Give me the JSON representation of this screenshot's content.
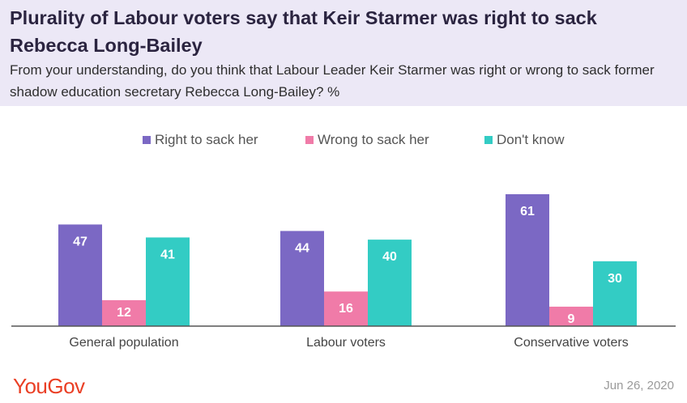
{
  "title": "Plurality of Labour voters say that Keir Starmer was right to sack Rebecca Long-Bailey",
  "subtitle": "From your understanding, do you think that Labour Leader Keir Starmer was right or wrong to sack former shadow education secretary Rebecca Long-Bailey? %",
  "footer": {
    "logo": "YouGov",
    "date": "Jun 26, 2020"
  },
  "colors": {
    "header_bg": "#ece8f6",
    "right": "#7b68c4",
    "wrong": "#f07ba8",
    "dontknow": "#33ccc4"
  },
  "chart_data": {
    "type": "bar",
    "categories": [
      "General population",
      "Labour voters",
      "Conservative voters"
    ],
    "series": [
      {
        "name": "Right to sack her",
        "color": "#7b68c4",
        "values": [
          47,
          44,
          61
        ]
      },
      {
        "name": "Wrong to sack her",
        "color": "#f07ba8",
        "values": [
          12,
          16,
          9
        ]
      },
      {
        "name": "Don't know",
        "color": "#33ccc4",
        "values": [
          41,
          40,
          30
        ]
      }
    ],
    "ylim": [
      0,
      61
    ],
    "legend_position": "top-center",
    "grid": false
  }
}
